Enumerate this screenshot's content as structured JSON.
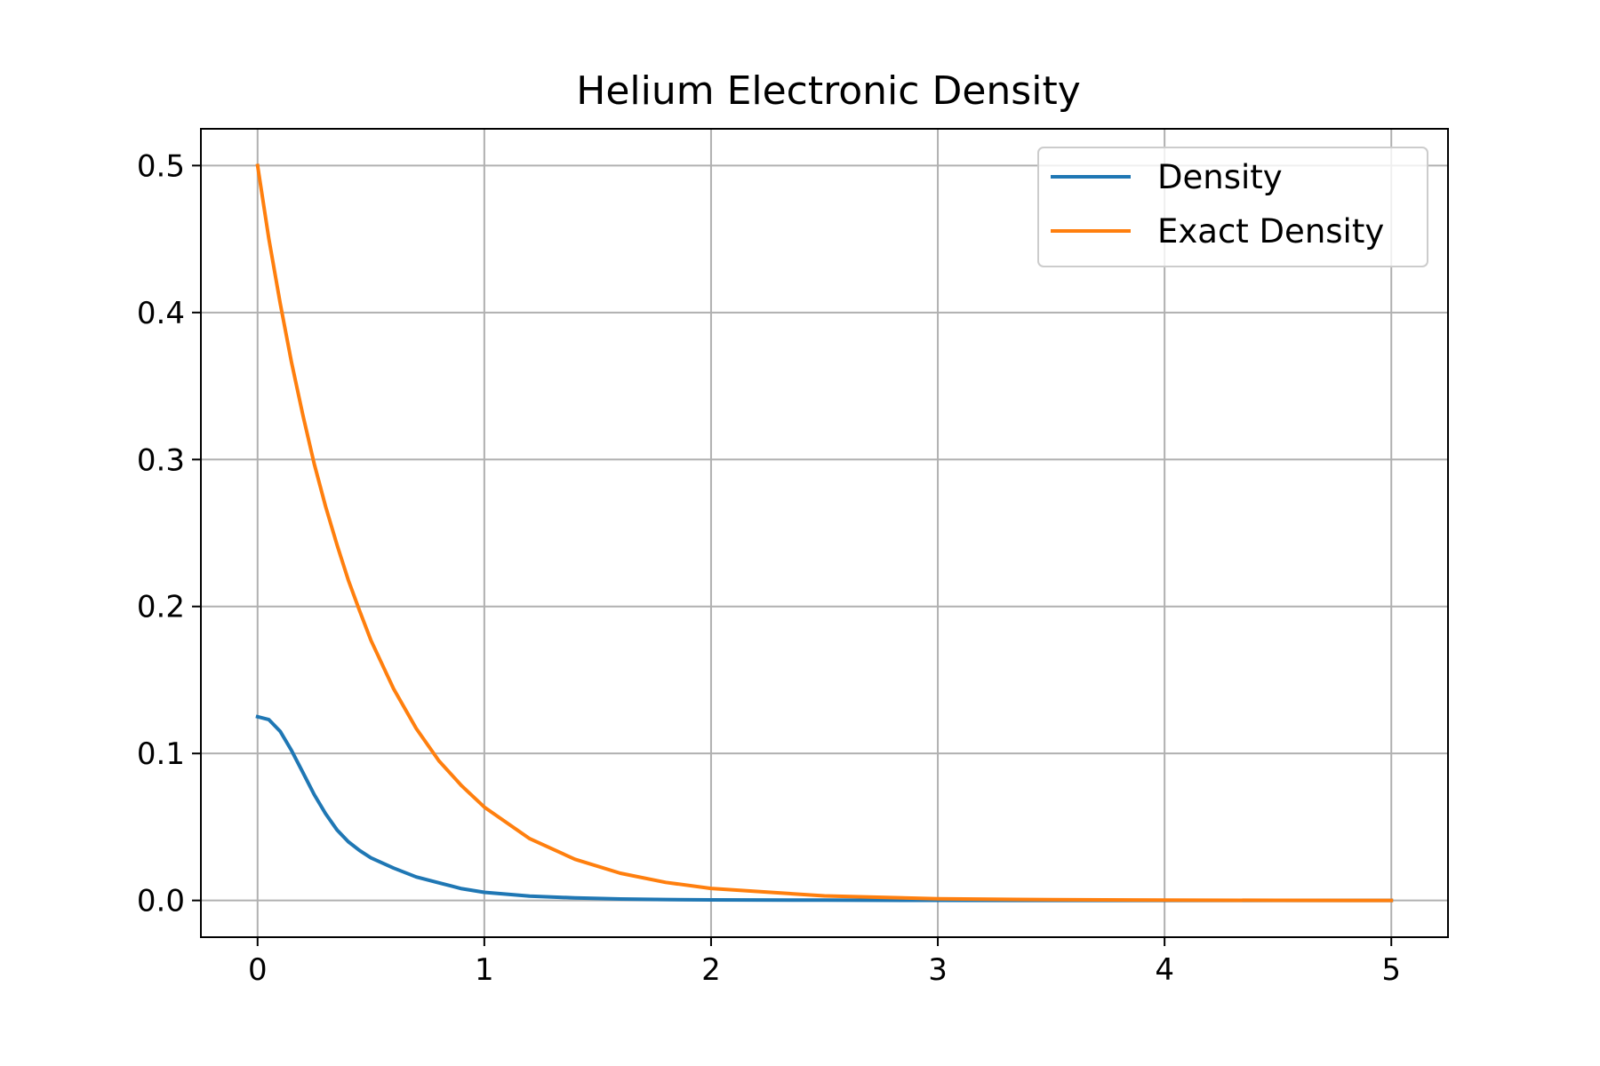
{
  "chart_data": {
    "type": "line",
    "title": "Helium Electronic Density",
    "xlabel": "",
    "ylabel": "",
    "xlim": [
      -0.25,
      5.25
    ],
    "ylim": [
      -0.025,
      0.525
    ],
    "xticks": [
      0,
      1,
      2,
      3,
      4,
      5
    ],
    "xtick_labels": [
      "0",
      "1",
      "2",
      "3",
      "4",
      "5"
    ],
    "yticks": [
      0.0,
      0.1,
      0.2,
      0.3,
      0.4,
      0.5
    ],
    "ytick_labels": [
      "0.0",
      "0.1",
      "0.2",
      "0.3",
      "0.4",
      "0.5"
    ],
    "grid": true,
    "legend_position": "top-right",
    "series": [
      {
        "name": "Density",
        "color": "#1f77b4",
        "x": [
          0,
          0.05,
          0.1,
          0.15,
          0.2,
          0.25,
          0.3,
          0.35,
          0.4,
          0.45,
          0.5,
          0.6,
          0.7,
          0.8,
          0.9,
          1.0,
          1.2,
          1.4,
          1.6,
          1.8,
          2.0,
          2.5,
          3.0,
          3.5,
          4.0,
          4.5,
          5.0
        ],
        "y": [
          0.125,
          0.123,
          0.115,
          0.102,
          0.087,
          0.072,
          0.059,
          0.048,
          0.04,
          0.034,
          0.029,
          0.022,
          0.016,
          0.012,
          0.008,
          0.0055,
          0.003,
          0.0017,
          0.001,
          0.0006,
          0.0004,
          0.0002,
          0.0001,
          5e-05,
          2e-05,
          1e-05,
          0.0
        ]
      },
      {
        "name": "Exact Density",
        "color": "#ff7f0e",
        "x": [
          0,
          0.05,
          0.1,
          0.15,
          0.2,
          0.25,
          0.3,
          0.35,
          0.4,
          0.45,
          0.5,
          0.6,
          0.7,
          0.8,
          0.9,
          1.0,
          1.2,
          1.4,
          1.6,
          1.8,
          2.0,
          2.5,
          3.0,
          3.5,
          4.0,
          4.5,
          5.0
        ],
        "y": [
          0.5,
          0.45,
          0.406,
          0.366,
          0.33,
          0.297,
          0.268,
          0.242,
          0.218,
          0.197,
          0.177,
          0.144,
          0.117,
          0.095,
          0.078,
          0.0635,
          0.042,
          0.028,
          0.0185,
          0.0123,
          0.0082,
          0.0031,
          0.0012,
          0.0005,
          0.0002,
          0.0001,
          5e-05
        ]
      }
    ]
  }
}
